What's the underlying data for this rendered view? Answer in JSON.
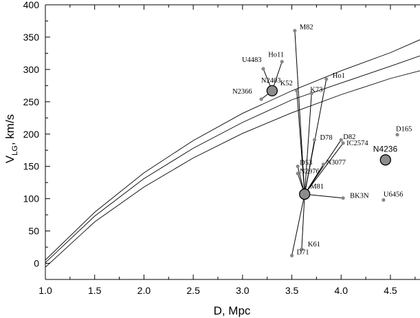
{
  "chart_data": {
    "type": "scatter",
    "xlabel": "D, Mpc",
    "ylabel": {
      "main": "V",
      "sub": "LG",
      "rest": ", km/s"
    },
    "xlim": [
      1.0,
      4.8
    ],
    "ylim": [
      -25,
      400
    ],
    "x_ticks": [
      "1.0",
      "1.5",
      "2.0",
      "2.5",
      "3.0",
      "3.5",
      "4.0",
      "4.5"
    ],
    "x_tick_values": [
      1.0,
      1.5,
      2.0,
      2.5,
      3.0,
      3.5,
      4.0,
      4.5
    ],
    "y_ticks": [
      "0",
      "50",
      "100",
      "150",
      "200",
      "250",
      "300",
      "350",
      "400"
    ],
    "y_tick_values": [
      0,
      50,
      100,
      150,
      200,
      250,
      300,
      350,
      400
    ],
    "major_groups": [
      {
        "name": "M81",
        "x": 3.63,
        "y": 107
      },
      {
        "name": "N2403",
        "x": 3.3,
        "y": 267
      },
      {
        "name": "N4236",
        "x": 4.45,
        "y": 160
      }
    ],
    "galaxies": [
      {
        "name": "M82",
        "x": 3.53,
        "y": 360,
        "link": "M81"
      },
      {
        "name": "Ho1",
        "x": 3.85,
        "y": 285,
        "link": "M81"
      },
      {
        "name": "K73",
        "x": 3.7,
        "y": 263,
        "link": "M81"
      },
      {
        "name": "K52",
        "x": 3.55,
        "y": 267,
        "link": "M81"
      },
      {
        "name": "D78",
        "x": 3.73,
        "y": 191,
        "link": "M81"
      },
      {
        "name": "D82",
        "x": 4.0,
        "y": 191,
        "link": "M81"
      },
      {
        "name": "IC2574",
        "x": 4.02,
        "y": 186,
        "link": "M81"
      },
      {
        "name": "N3077",
        "x": 3.82,
        "y": 153,
        "link": "M81"
      },
      {
        "name": "D53",
        "x": 3.56,
        "y": 150,
        "link": "M81"
      },
      {
        "name": "N2976",
        "x": 3.56,
        "y": 139,
        "link": "M81"
      },
      {
        "name": "BK3N",
        "x": 4.02,
        "y": 101,
        "link": "M81"
      },
      {
        "name": "K61",
        "x": 3.6,
        "y": 22,
        "link": "M81"
      },
      {
        "name": "D71",
        "x": 3.5,
        "y": 12,
        "link": "M81"
      },
      {
        "name": "Ho11",
        "x": 3.4,
        "y": 312,
        "link": "N2403"
      },
      {
        "name": "U4483",
        "x": 3.21,
        "y": 301,
        "link": "N2403"
      },
      {
        "name": "N2366",
        "x": 3.19,
        "y": 254,
        "link": "N2403"
      },
      {
        "name": "D165",
        "x": 4.57,
        "y": 199,
        "link": null
      },
      {
        "name": "U6456",
        "x": 4.43,
        "y": 98,
        "link": null
      }
    ],
    "label_text": {
      "M82": "M82",
      "Ho1": "Ho1",
      "K73": "K73",
      "K52": "K52",
      "D78": "D78",
      "D82": "D82",
      "IC2574": "IC2574",
      "N3077": "N3077",
      "D53": "D53",
      "N2976": "N2976",
      "BK3N": "BK3N",
      "K61": "K61",
      "D71": "D71",
      "Ho11": "Ho11",
      "U4483": "U4483",
      "N2366": "N2366",
      "D165": "D165",
      "U6456": "U6456",
      "M81": "M81",
      "N2403": "N2403",
      "N4236": "N4236"
    },
    "curves": [
      {
        "x": [
          1.0,
          1.5,
          2.0,
          2.5,
          3.0,
          3.5,
          4.0,
          4.5,
          4.8
        ],
        "y": [
          5,
          79,
          140,
          190,
          232,
          267,
          298,
          326,
          346
        ]
      },
      {
        "x": [
          1.0,
          1.5,
          2.0,
          2.5,
          3.0,
          3.5,
          4.0,
          4.5,
          4.8
        ],
        "y": [
          1,
          73,
          131,
          178,
          218,
          253,
          279,
          305,
          321
        ]
      },
      {
        "x": [
          1.0,
          1.5,
          2.0,
          2.5,
          3.0,
          3.5,
          4.0,
          4.5,
          4.8
        ],
        "y": [
          -6,
          64,
          118,
          163,
          201,
          233,
          261,
          286,
          298
        ]
      }
    ],
    "grid": false,
    "legend": "none",
    "colors": {
      "point": "#888888",
      "group_fill": "#8c8c8c",
      "line": "#000000",
      "background": "#ffffff"
    }
  }
}
